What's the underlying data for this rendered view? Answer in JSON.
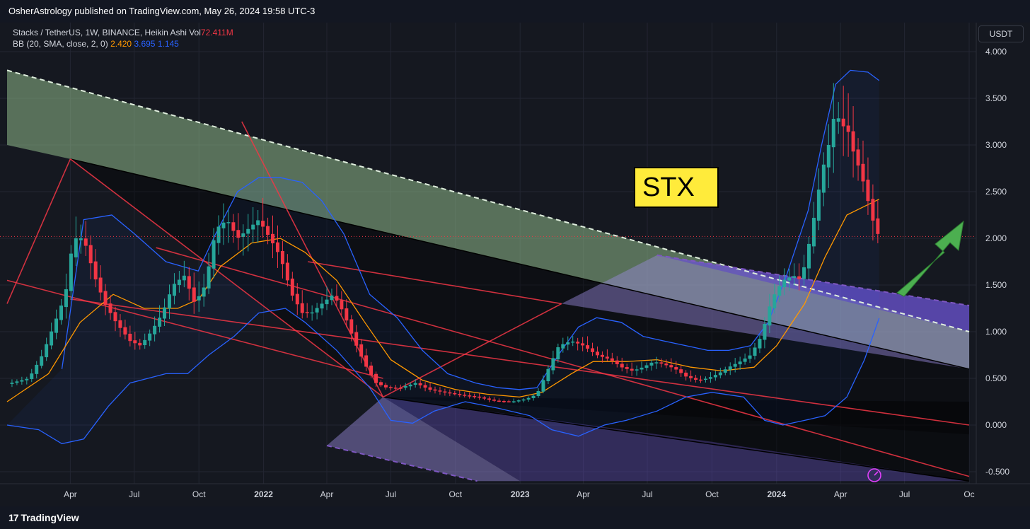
{
  "header": {
    "publisher_text": "OsherAstrology published on TradingView.com, May 26, 2024 19:58 UTC-3"
  },
  "legend": {
    "symbol_line": "Stacks / TetherUS, 1W, BINANCE, Heikin Ashi",
    "vol_label": "Vol",
    "vol_value": "72.411M",
    "indicator": "BB (20, SMA, close, 2, 0)",
    "bb_basis": "2.420",
    "bb_upper": "3.695",
    "bb_lower": "1.145"
  },
  "currency": "USDT",
  "annotation": "STX",
  "footer": {
    "brand": "TradingView"
  },
  "colors": {
    "up": "#26a69a",
    "down": "#f23645",
    "basis": "#ff9800",
    "bands": "#2962ff",
    "drawing": "#f23645",
    "label_bg": "#ffeb3b"
  },
  "chart_data": {
    "type": "candlestick",
    "chart_style": "Heikin Ashi",
    "timeframe": "1W",
    "ylim": [
      -0.6,
      4.15
    ],
    "yticks": [
      "4.000",
      "3.500",
      "3.000",
      "2.500",
      "2.000",
      "1.500",
      "1.000",
      "0.500",
      "0.000",
      "-0.500"
    ],
    "ytick_values": [
      4.0,
      3.5,
      3.0,
      2.5,
      2.0,
      1.5,
      1.0,
      0.5,
      0.0,
      -0.5
    ],
    "xticks": [
      {
        "label": "Apr",
        "date": "2021-04-01",
        "year": false
      },
      {
        "label": "Jul",
        "date": "2021-07-01",
        "year": false
      },
      {
        "label": "Oct",
        "date": "2021-10-01",
        "year": false
      },
      {
        "label": "2022",
        "date": "2022-01-01",
        "year": true
      },
      {
        "label": "Apr",
        "date": "2022-04-01",
        "year": false
      },
      {
        "label": "Jul",
        "date": "2022-07-01",
        "year": false
      },
      {
        "label": "Oct",
        "date": "2022-10-01",
        "year": false
      },
      {
        "label": "2023",
        "date": "2023-01-01",
        "year": true
      },
      {
        "label": "Apr",
        "date": "2023-04-01",
        "year": false
      },
      {
        "label": "Jul",
        "date": "2023-07-01",
        "year": false
      },
      {
        "label": "Oct",
        "date": "2023-10-01",
        "year": false
      },
      {
        "label": "2024",
        "date": "2024-01-01",
        "year": true
      },
      {
        "label": "Apr",
        "date": "2024-04-01",
        "year": false
      },
      {
        "label": "Jul",
        "date": "2024-07-01",
        "year": false
      },
      {
        "label": "Oc",
        "date": "2024-10-01",
        "year": false
      }
    ],
    "xrange": [
      "2021-01-01",
      "2024-10-01"
    ],
    "last_price": 2.02,
    "close_path": [
      [
        "2021-01-01",
        0.44
      ],
      [
        "2021-02-01",
        0.5
      ],
      [
        "2021-02-20",
        0.75
      ],
      [
        "2021-03-10",
        1.1
      ],
      [
        "2021-03-25",
        1.4
      ],
      [
        "2021-04-05",
        2.0
      ],
      [
        "2021-04-20",
        2.0
      ],
      [
        "2021-05-05",
        1.6
      ],
      [
        "2021-05-20",
        1.3
      ],
      [
        "2021-06-05",
        1.1
      ],
      [
        "2021-06-25",
        0.9
      ],
      [
        "2021-07-10",
        0.85
      ],
      [
        "2021-07-25",
        1.0
      ],
      [
        "2021-08-10",
        1.2
      ],
      [
        "2021-08-25",
        1.5
      ],
      [
        "2021-09-10",
        1.6
      ],
      [
        "2021-09-25",
        1.3
      ],
      [
        "2021-10-10",
        1.5
      ],
      [
        "2021-10-25",
        2.1
      ],
      [
        "2021-11-10",
        2.2
      ],
      [
        "2021-11-25",
        2.0
      ],
      [
        "2021-12-10",
        2.1
      ],
      [
        "2021-12-25",
        2.2
      ],
      [
        "2022-01-10",
        2.0
      ],
      [
        "2022-01-25",
        1.8
      ],
      [
        "2022-02-10",
        1.4
      ],
      [
        "2022-02-25",
        1.2
      ],
      [
        "2022-03-10",
        1.2
      ],
      [
        "2022-03-25",
        1.3
      ],
      [
        "2022-04-10",
        1.4
      ],
      [
        "2022-04-25",
        1.2
      ],
      [
        "2022-05-10",
        0.9
      ],
      [
        "2022-05-25",
        0.65
      ],
      [
        "2022-06-10",
        0.45
      ],
      [
        "2022-06-25",
        0.4
      ],
      [
        "2022-07-15",
        0.4
      ],
      [
        "2022-08-05",
        0.45
      ],
      [
        "2022-08-25",
        0.38
      ],
      [
        "2022-09-15",
        0.35
      ],
      [
        "2022-10-10",
        0.32
      ],
      [
        "2022-11-01",
        0.3
      ],
      [
        "2022-11-25",
        0.26
      ],
      [
        "2022-12-20",
        0.25
      ],
      [
        "2023-01-10",
        0.28
      ],
      [
        "2023-01-25",
        0.33
      ],
      [
        "2023-02-10",
        0.6
      ],
      [
        "2023-02-25",
        0.85
      ],
      [
        "2023-03-15",
        0.9
      ],
      [
        "2023-04-01",
        0.85
      ],
      [
        "2023-04-20",
        0.75
      ],
      [
        "2023-05-10",
        0.7
      ],
      [
        "2023-05-25",
        0.62
      ],
      [
        "2023-06-10",
        0.58
      ],
      [
        "2023-06-25",
        0.62
      ],
      [
        "2023-07-10",
        0.68
      ],
      [
        "2023-07-25",
        0.65
      ],
      [
        "2023-08-10",
        0.6
      ],
      [
        "2023-08-25",
        0.52
      ],
      [
        "2023-09-10",
        0.48
      ],
      [
        "2023-09-25",
        0.5
      ],
      [
        "2023-10-10",
        0.55
      ],
      [
        "2023-10-25",
        0.62
      ],
      [
        "2023-11-10",
        0.68
      ],
      [
        "2023-11-25",
        0.75
      ],
      [
        "2023-12-10",
        0.95
      ],
      [
        "2023-12-25",
        1.35
      ],
      [
        "2024-01-10",
        1.55
      ],
      [
        "2024-01-25",
        1.6
      ],
      [
        "2024-02-05",
        1.55
      ],
      [
        "2024-02-15",
        1.9
      ],
      [
        "2024-02-25",
        2.3
      ],
      [
        "2024-03-05",
        2.7
      ],
      [
        "2024-03-15",
        3.0
      ],
      [
        "2024-03-25",
        3.4
      ],
      [
        "2024-04-01",
        3.2
      ],
      [
        "2024-04-10",
        3.2
      ],
      [
        "2024-04-20",
        2.9
      ],
      [
        "2024-04-30",
        2.7
      ],
      [
        "2024-05-10",
        2.4
      ],
      [
        "2024-05-20",
        2.1
      ],
      [
        "2024-05-26",
        2.02
      ]
    ],
    "bb_basis_path": [
      [
        "2021-01-01",
        0.25
      ],
      [
        "2021-03-01",
        0.55
      ],
      [
        "2021-04-15",
        1.1
      ],
      [
        "2021-06-01",
        1.4
      ],
      [
        "2021-07-15",
        1.25
      ],
      [
        "2021-09-01",
        1.25
      ],
      [
        "2021-10-01",
        1.35
      ],
      [
        "2021-11-01",
        1.7
      ],
      [
        "2021-12-15",
        1.95
      ],
      [
        "2022-01-25",
        2.0
      ],
      [
        "2022-03-01",
        1.85
      ],
      [
        "2022-04-15",
        1.55
      ],
      [
        "2022-05-25",
        1.1
      ],
      [
        "2022-07-01",
        0.7
      ],
      [
        "2022-08-15",
        0.48
      ],
      [
        "2022-10-01",
        0.38
      ],
      [
        "2022-11-15",
        0.33
      ],
      [
        "2022-12-31",
        0.3
      ],
      [
        "2023-02-01",
        0.35
      ],
      [
        "2023-03-15",
        0.55
      ],
      [
        "2023-04-15",
        0.68
      ],
      [
        "2023-06-01",
        0.68
      ],
      [
        "2023-07-15",
        0.7
      ],
      [
        "2023-09-01",
        0.62
      ],
      [
        "2023-10-15",
        0.58
      ],
      [
        "2023-11-30",
        0.62
      ],
      [
        "2024-01-01",
        0.85
      ],
      [
        "2024-02-10",
        1.3
      ],
      [
        "2024-03-10",
        1.8
      ],
      [
        "2024-04-10",
        2.25
      ],
      [
        "2024-05-26",
        2.42
      ]
    ],
    "bb_upper_path": [
      [
        "2021-03-20",
        0.6
      ],
      [
        "2021-04-20",
        2.2
      ],
      [
        "2021-05-30",
        2.25
      ],
      [
        "2021-07-01",
        2.05
      ],
      [
        "2021-08-15",
        1.75
      ],
      [
        "2021-09-30",
        1.65
      ],
      [
        "2021-10-25",
        2.05
      ],
      [
        "2021-11-25",
        2.5
      ],
      [
        "2021-12-25",
        2.65
      ],
      [
        "2022-01-25",
        2.65
      ],
      [
        "2022-02-25",
        2.6
      ],
      [
        "2022-03-25",
        2.4
      ],
      [
        "2022-04-25",
        2.05
      ],
      [
        "2022-06-01",
        1.4
      ],
      [
        "2022-07-10",
        1.15
      ],
      [
        "2022-08-15",
        0.8
      ],
      [
        "2022-09-20",
        0.55
      ],
      [
        "2022-10-30",
        0.45
      ],
      [
        "2022-12-01",
        0.4
      ],
      [
        "2022-12-31",
        0.38
      ],
      [
        "2023-01-25",
        0.4
      ],
      [
        "2023-03-01",
        0.8
      ],
      [
        "2023-03-25",
        1.05
      ],
      [
        "2023-04-20",
        1.15
      ],
      [
        "2023-05-25",
        1.1
      ],
      [
        "2023-06-25",
        0.95
      ],
      [
        "2023-07-25",
        0.9
      ],
      [
        "2023-08-25",
        0.85
      ],
      [
        "2023-09-25",
        0.8
      ],
      [
        "2023-10-25",
        0.8
      ],
      [
        "2023-11-25",
        0.85
      ],
      [
        "2023-12-20",
        1.1
      ],
      [
        "2024-01-15",
        1.6
      ],
      [
        "2024-02-15",
        2.3
      ],
      [
        "2024-03-05",
        3.0
      ],
      [
        "2024-03-25",
        3.65
      ],
      [
        "2024-04-15",
        3.8
      ],
      [
        "2024-05-10",
        3.78
      ],
      [
        "2024-05-26",
        3.69
      ]
    ],
    "bb_lower_path": [
      [
        "2021-01-01",
        0.0
      ],
      [
        "2021-02-15",
        -0.05
      ],
      [
        "2021-03-20",
        -0.2
      ],
      [
        "2021-04-20",
        -0.15
      ],
      [
        "2021-05-25",
        0.2
      ],
      [
        "2021-06-25",
        0.45
      ],
      [
        "2021-08-15",
        0.55
      ],
      [
        "2021-09-15",
        0.55
      ],
      [
        "2021-10-15",
        0.75
      ],
      [
        "2021-11-20",
        0.95
      ],
      [
        "2021-12-25",
        1.2
      ],
      [
        "2022-02-01",
        1.25
      ],
      [
        "2022-03-01",
        1.1
      ],
      [
        "2022-04-15",
        0.8
      ],
      [
        "2022-06-01",
        0.4
      ],
      [
        "2022-07-01",
        0.05
      ],
      [
        "2022-08-01",
        0.02
      ],
      [
        "2022-09-01",
        0.15
      ],
      [
        "2022-10-15",
        0.25
      ],
      [
        "2022-12-01",
        0.18
      ],
      [
        "2023-01-15",
        0.1
      ],
      [
        "2023-02-15",
        -0.05
      ],
      [
        "2023-03-25",
        -0.12
      ],
      [
        "2023-05-01",
        0.0
      ],
      [
        "2023-06-01",
        0.05
      ],
      [
        "2023-07-15",
        0.15
      ],
      [
        "2023-08-25",
        0.3
      ],
      [
        "2023-10-01",
        0.35
      ],
      [
        "2023-11-15",
        0.3
      ],
      [
        "2023-12-15",
        0.05
      ],
      [
        "2024-01-10",
        0.0
      ],
      [
        "2024-02-10",
        0.05
      ],
      [
        "2024-03-10",
        0.1
      ],
      [
        "2024-04-10",
        0.3
      ],
      [
        "2024-05-05",
        0.7
      ],
      [
        "2024-05-26",
        1.145
      ]
    ],
    "drawings": {
      "channel_top_dashed": [
        [
          "2021-01-01",
          3.8
        ],
        [
          "2024-10-01",
          1.0
        ]
      ],
      "channel_mid": [
        [
          "2021-04-01",
          2.85
        ],
        [
          "2024-10-01",
          0.6
        ]
      ],
      "channel_low": [
        [
          "2021-01-01",
          3.4
        ],
        [
          "2024-10-01",
          0.25
        ]
      ],
      "purple_dashed": [
        [
          "2023-07-15",
          1.82
        ],
        [
          "2024-10-01",
          1.28
        ]
      ],
      "lower_black_line": [
        [
          "2022-06-20",
          0.3
        ],
        [
          "2024-10-01",
          -0.6
        ]
      ],
      "red_lines": [
        [
          [
            "2021-01-01",
            1.55
          ],
          [
            "2022-06-20",
            0.5
          ]
        ],
        [
          [
            "2021-01-01",
            1.3
          ],
          [
            "2021-04-01",
            2.85
          ]
        ],
        [
          [
            "2021-04-01",
            2.85
          ],
          [
            "2022-06-20",
            0.3
          ]
        ],
        [
          [
            "2021-12-01",
            3.25
          ],
          [
            "2022-06-20",
            0.3
          ]
        ],
        [
          [
            "2022-03-05",
            1.75
          ],
          [
            "2023-03-01",
            1.3
          ]
        ],
        [
          [
            "2022-06-20",
            0.3
          ],
          [
            "2023-03-01",
            1.3
          ]
        ],
        [
          [
            "2021-08-01",
            1.9
          ],
          [
            "2024-10-01",
            -0.55
          ]
        ],
        [
          [
            "2021-04-01",
            1.35
          ],
          [
            "2024-10-01",
            0.0
          ]
        ]
      ]
    }
  }
}
